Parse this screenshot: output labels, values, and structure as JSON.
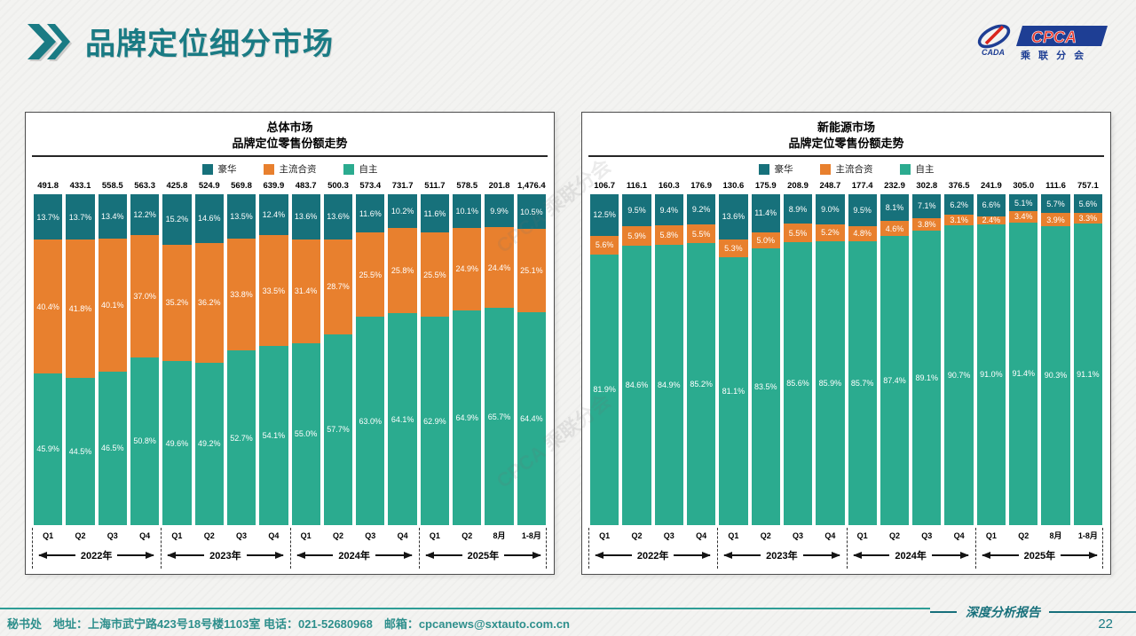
{
  "page": {
    "title": "品牌定位细分市场",
    "page_number": "22",
    "report_label": "深度分析报告",
    "watermark": "CPCA 乘联分会",
    "footer_text": "秘书处　地址：上海市武宁路423号18号楼1103室  电话：021-52680968　邮箱：cpcanews@sxtauto.com.cn",
    "logo": {
      "acronym": "CPCA",
      "branch": "乘 联 分 会",
      "assoc": "CADA"
    }
  },
  "legend": [
    "豪华",
    "主流合资",
    "自主"
  ],
  "colors": {
    "series": [
      "#17717B",
      "#E8802E",
      "#2BAB8F"
    ],
    "accent": "#1A7B84"
  },
  "x_axis": {
    "quarters": [
      "Q1",
      "Q2",
      "Q3",
      "Q4",
      "Q1",
      "Q2",
      "Q3",
      "Q4",
      "Q1",
      "Q2",
      "Q3",
      "Q4",
      "Q1",
      "Q2",
      "8月",
      "1-8月"
    ],
    "year_groups": [
      {
        "label": "2022年"
      },
      {
        "label": "2023年"
      },
      {
        "label": "2024年"
      },
      {
        "label": "2025年"
      }
    ]
  },
  "chart_data": [
    {
      "type": "bar",
      "stacked": true,
      "title": "总体市场",
      "subtitle": "品牌定位零售份额走势",
      "unit": "%",
      "ylim": [
        0,
        100
      ],
      "legend_position": "top",
      "categories": [
        "2022Q1",
        "2022Q2",
        "2022Q3",
        "2022Q4",
        "2023Q1",
        "2023Q2",
        "2023Q3",
        "2023Q4",
        "2024Q1",
        "2024Q2",
        "2024Q3",
        "2024Q4",
        "2025Q1",
        "2025Q2",
        "2025年8月",
        "2025年1-8月"
      ],
      "totals": [
        "491.8",
        "433.1",
        "558.5",
        "563.3",
        "425.8",
        "524.9",
        "569.8",
        "639.9",
        "483.7",
        "500.3",
        "573.4",
        "731.7",
        "511.7",
        "578.5",
        "201.8",
        "1,476.4"
      ],
      "series": [
        {
          "name": "豪华",
          "values": [
            13.7,
            13.7,
            13.4,
            12.2,
            15.2,
            14.6,
            13.5,
            12.4,
            13.6,
            13.6,
            11.6,
            10.2,
            11.6,
            10.1,
            9.9,
            10.5
          ]
        },
        {
          "name": "主流合资",
          "values": [
            40.4,
            41.8,
            40.1,
            37.0,
            35.2,
            36.2,
            33.8,
            33.5,
            31.4,
            28.7,
            25.5,
            25.8,
            25.5,
            24.9,
            24.4,
            25.1
          ]
        },
        {
          "name": "自主",
          "values": [
            45.9,
            44.5,
            46.5,
            50.8,
            49.6,
            49.2,
            52.7,
            54.1,
            55.0,
            57.7,
            63.0,
            64.1,
            62.9,
            64.9,
            65.7,
            64.4
          ]
        }
      ]
    },
    {
      "type": "bar",
      "stacked": true,
      "title": "新能源市场",
      "subtitle": "品牌定位零售份额走势",
      "unit": "%",
      "ylim": [
        0,
        100
      ],
      "legend_position": "top",
      "categories": [
        "2022Q1",
        "2022Q2",
        "2022Q3",
        "2022Q4",
        "2023Q1",
        "2023Q2",
        "2023Q3",
        "2023Q4",
        "2024Q1",
        "2024Q2",
        "2024Q3",
        "2024Q4",
        "2025Q1",
        "2025Q2",
        "2025年8月",
        "2025年1-8月"
      ],
      "totals": [
        "106.7",
        "116.1",
        "160.3",
        "176.9",
        "130.6",
        "175.9",
        "208.9",
        "248.7",
        "177.4",
        "232.9",
        "302.8",
        "376.5",
        "241.9",
        "305.0",
        "111.6",
        "757.1"
      ],
      "series": [
        {
          "name": "豪华",
          "values": [
            12.5,
            9.5,
            9.4,
            9.2,
            13.6,
            11.4,
            8.9,
            9.0,
            9.5,
            8.1,
            7.1,
            6.2,
            6.6,
            5.1,
            5.7,
            5.6
          ]
        },
        {
          "name": "主流合资",
          "values": [
            5.6,
            5.9,
            5.8,
            5.5,
            5.3,
            5.0,
            5.5,
            5.2,
            4.8,
            4.6,
            3.8,
            3.1,
            2.4,
            3.4,
            3.9,
            3.3
          ]
        },
        {
          "name": "自主",
          "values": [
            81.9,
            84.6,
            84.9,
            85.2,
            81.1,
            83.5,
            85.6,
            85.9,
            85.7,
            87.4,
            89.1,
            90.7,
            91.0,
            91.4,
            90.3,
            91.1
          ]
        }
      ]
    }
  ]
}
